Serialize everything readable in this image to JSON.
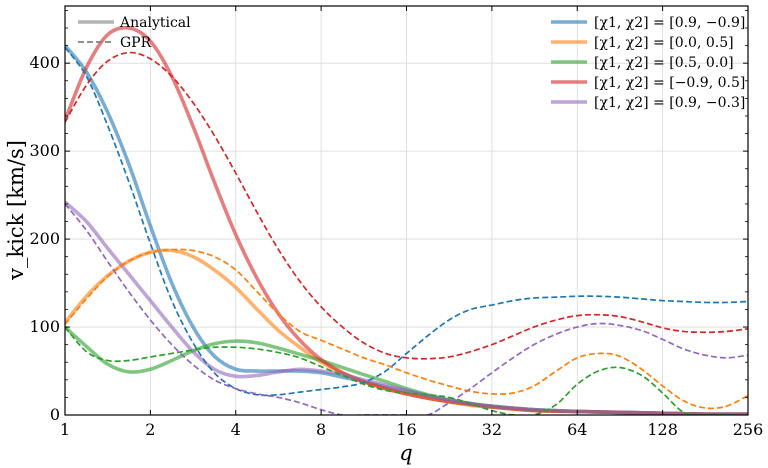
{
  "chart_data": {
    "type": "line",
    "xlabel": "q",
    "ylabel": "v_kick [km/s]",
    "xscale": "log2",
    "xlim": [
      1,
      256
    ],
    "ylim": [
      0,
      465
    ],
    "x_ticks": [
      "1",
      "2",
      "4",
      "8",
      "16",
      "32",
      "64",
      "128",
      "256"
    ],
    "y_ticks": [
      "0",
      "100",
      "200",
      "300",
      "400"
    ],
    "grid": true,
    "legend_style": [
      {
        "label": "Analytical",
        "linestyle": "solid"
      },
      {
        "label": "GPR",
        "linestyle": "dashed"
      }
    ],
    "legend_placement": "top-right",
    "series": [
      {
        "name": "[χ1, χ2] = [0.9, −0.9]",
        "color": "#1f77b4",
        "analytical": {
          "x": [
            1,
            1.19,
            1.41,
            1.68,
            2,
            2.38,
            2.83,
            3.36,
            4,
            4.76,
            5.66,
            6.73,
            8,
            9.51,
            11.3,
            13.5,
            16,
            19,
            22.6,
            26.9,
            32,
            45,
            64,
            90,
            128,
            181,
            256
          ],
          "y": [
            420,
            390,
            345,
            285,
            215,
            150,
            100,
            67,
            52,
            50,
            50,
            50,
            48,
            43,
            38,
            32,
            27,
            22,
            17,
            13,
            10,
            6,
            4,
            3,
            2,
            1,
            1
          ]
        },
        "gpr": {
          "x": [
            1,
            1.19,
            1.41,
            1.68,
            2,
            2.38,
            2.83,
            3.36,
            4,
            4.76,
            5.66,
            6.73,
            8,
            9.51,
            11.3,
            13.5,
            16,
            19,
            22.6,
            26.9,
            32,
            38,
            45,
            54,
            64,
            76,
            90,
            108,
            128,
            152,
            181,
            215,
            256
          ],
          "y": [
            418,
            385,
            330,
            265,
            195,
            130,
            82,
            48,
            30,
            23,
            23,
            26,
            29,
            32,
            37,
            50,
            70,
            90,
            108,
            120,
            125,
            130,
            133,
            134,
            135,
            135,
            134,
            132,
            130,
            129,
            128,
            128,
            129
          ]
        }
      },
      {
        "name": "[χ1, χ2] = [0.0, 0.5]",
        "color": "#ff7f0e",
        "analytical": {
          "x": [
            1,
            1.19,
            1.41,
            1.68,
            2,
            2.38,
            2.83,
            3.36,
            4,
            4.76,
            5.66,
            6.73,
            8,
            9.51,
            11.3,
            13.5,
            16,
            19,
            22.6,
            26.9,
            32,
            45,
            64,
            90,
            128,
            181,
            256
          ],
          "y": [
            105,
            135,
            158,
            175,
            185,
            187,
            180,
            165,
            145,
            120,
            96,
            77,
            60,
            48,
            38,
            30,
            24,
            19,
            15,
            11,
            9,
            5,
            4,
            3,
            2,
            1,
            1
          ]
        },
        "gpr": {
          "x": [
            1,
            1.19,
            1.41,
            1.68,
            2,
            2.38,
            2.83,
            3.36,
            4,
            4.76,
            5.66,
            6.73,
            8,
            9.51,
            11.3,
            13.5,
            16,
            19,
            22.6,
            26.9,
            32,
            38,
            45,
            54,
            64,
            76,
            90,
            108,
            128,
            152,
            181,
            215,
            256
          ],
          "y": [
            103,
            132,
            157,
            175,
            185,
            188,
            187,
            180,
            165,
            140,
            115,
            95,
            85,
            75,
            65,
            57,
            48,
            40,
            33,
            27,
            24,
            25,
            33,
            50,
            65,
            70,
            67,
            52,
            33,
            16,
            8,
            10,
            22
          ]
        }
      },
      {
        "name": "[χ1, χ2] = [0.5, 0.0]",
        "color": "#2ca02c",
        "analytical": {
          "x": [
            1,
            1.19,
            1.41,
            1.68,
            2,
            2.38,
            2.83,
            3.36,
            4,
            4.76,
            5.66,
            6.73,
            8,
            9.51,
            11.3,
            13.5,
            16,
            19,
            22.6,
            26.9,
            32,
            45,
            64,
            90,
            128,
            181,
            256
          ],
          "y": [
            100,
            78,
            58,
            49,
            52,
            62,
            73,
            81,
            84,
            82,
            76,
            69,
            62,
            54,
            46,
            38,
            30,
            23,
            17,
            13,
            10,
            6,
            4,
            3,
            2,
            1,
            1
          ]
        },
        "gpr": {
          "x": [
            1,
            1.19,
            1.41,
            1.68,
            2,
            2.38,
            2.83,
            3.36,
            4,
            4.76,
            5.66,
            6.73,
            8,
            9.51,
            11.3,
            13.5,
            16,
            19,
            22.6,
            26.9,
            32,
            38,
            45,
            54,
            64,
            76,
            90,
            108,
            128,
            152,
            181,
            215,
            256
          ],
          "y": [
            100,
            72,
            62,
            62,
            66,
            70,
            74,
            77,
            77,
            75,
            71,
            65,
            55,
            45,
            35,
            28,
            25,
            23,
            20,
            13,
            5,
            0,
            0,
            12,
            35,
            50,
            54,
            45,
            25,
            3,
            0,
            0,
            0
          ]
        }
      },
      {
        "name": "[χ1, χ2] = [−0.9, 0.5]",
        "color": "#d62728",
        "analytical": {
          "x": [
            1,
            1.19,
            1.41,
            1.68,
            2,
            2.38,
            2.83,
            3.36,
            4,
            4.76,
            5.66,
            6.73,
            8,
            9.51,
            11.3,
            13.5,
            16,
            19,
            22.6,
            26.9,
            32,
            45,
            64,
            90,
            128,
            181,
            256
          ],
          "y": [
            335,
            395,
            432,
            440,
            425,
            385,
            328,
            265,
            205,
            155,
            115,
            85,
            63,
            48,
            38,
            30,
            24,
            19,
            15,
            12,
            9,
            5,
            4,
            3,
            2,
            1,
            1
          ]
        },
        "gpr": {
          "x": [
            1,
            1.19,
            1.41,
            1.68,
            2,
            2.38,
            2.83,
            3.36,
            4,
            4.76,
            5.66,
            6.73,
            8,
            9.51,
            11.3,
            13.5,
            16,
            19,
            22.6,
            26.9,
            32,
            38,
            45,
            54,
            64,
            76,
            90,
            108,
            128,
            152,
            181,
            215,
            256
          ],
          "y": [
            333,
            375,
            402,
            412,
            405,
            385,
            355,
            318,
            275,
            230,
            188,
            152,
            123,
            100,
            82,
            70,
            65,
            64,
            66,
            72,
            80,
            90,
            100,
            108,
            113,
            114,
            112,
            106,
            99,
            95,
            94,
            95,
            98
          ]
        }
      },
      {
        "name": "[χ1, χ2] = [0.9, −0.3]",
        "color": "#9467bd",
        "analytical": {
          "x": [
            1,
            1.19,
            1.41,
            1.68,
            2,
            2.38,
            2.83,
            3.36,
            4,
            4.76,
            5.66,
            6.73,
            8,
            9.51,
            11.3,
            13.5,
            16,
            19,
            22.6,
            26.9,
            32,
            45,
            64,
            90,
            128,
            181,
            256
          ],
          "y": [
            242,
            220,
            190,
            160,
            130,
            100,
            72,
            52,
            44,
            45,
            49,
            52,
            50,
            46,
            40,
            34,
            28,
            22,
            17,
            13,
            10,
            6,
            4,
            3,
            2,
            1,
            1
          ]
        },
        "gpr": {
          "x": [
            1,
            1.19,
            1.41,
            1.68,
            2,
            2.38,
            2.83,
            3.36,
            4,
            4.76,
            5.66,
            6.73,
            8,
            9.51,
            11.3,
            13.5,
            16,
            19,
            22.6,
            26.9,
            32,
            38,
            45,
            54,
            64,
            76,
            90,
            108,
            128,
            152,
            181,
            215,
            256
          ],
          "y": [
            240,
            210,
            175,
            140,
            108,
            80,
            57,
            40,
            30,
            24,
            20,
            14,
            6,
            0,
            0,
            0,
            0,
            0,
            14,
            30,
            48,
            65,
            80,
            92,
            100,
            104,
            102,
            96,
            86,
            75,
            68,
            65,
            68
          ]
        }
      }
    ]
  }
}
